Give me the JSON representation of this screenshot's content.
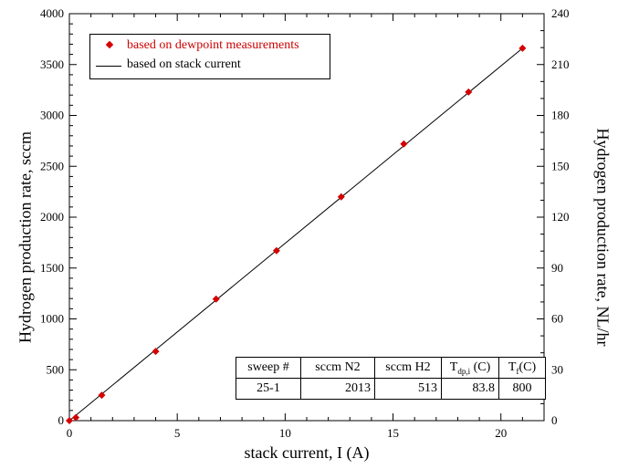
{
  "chart_data": {
    "type": "scatter",
    "xlabel": "stack current, I (A)",
    "ylabel": "Hydrogen production rate, sccm",
    "y2label": "Hydrogen production rate, NL/hr",
    "xlim": [
      0,
      22
    ],
    "ylim": [
      0,
      4000
    ],
    "y2lim": [
      0,
      240
    ],
    "xticks": [
      "0",
      "5",
      "10",
      "15",
      "20"
    ],
    "yticks": [
      "0",
      "500",
      "1000",
      "1500",
      "2000",
      "2500",
      "3000",
      "3500",
      "4000"
    ],
    "y2ticks": [
      "0",
      "30",
      "60",
      "90",
      "120",
      "150",
      "180",
      "210",
      "240"
    ],
    "series": [
      {
        "name": "based on dewpoint measurements",
        "kind": "points",
        "color": "#d40000",
        "x": [
          0.0,
          0.3,
          1.5,
          4.0,
          6.8,
          9.6,
          12.6,
          15.5,
          18.5,
          21.0
        ],
        "y": [
          0,
          30,
          250,
          680,
          1195,
          1670,
          2200,
          2720,
          3230,
          3660
        ]
      },
      {
        "name": "based on stack current",
        "kind": "line",
        "color": "#000000",
        "x": [
          0,
          21.0
        ],
        "y": [
          0,
          3660
        ]
      }
    ],
    "legend_position": "top-left",
    "grid": false
  },
  "table": {
    "headers": [
      "sweep #",
      "sccm N2",
      "sccm H2",
      "T",
      "T"
    ],
    "header_subs": [
      "",
      "",
      "",
      "dp,i",
      "f"
    ],
    "header_suffix": [
      "",
      "",
      "",
      "(C)",
      "(C)"
    ],
    "row": [
      "25-1",
      "2013",
      "513",
      "83.8",
      "800"
    ]
  }
}
